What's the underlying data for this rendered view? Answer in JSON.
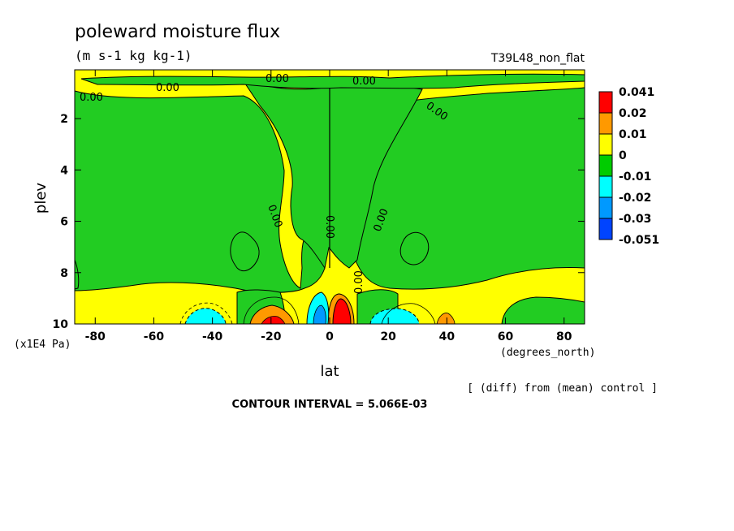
{
  "chart_data": {
    "type": "heatmap",
    "title": "poleward moisture flux",
    "units": "(m s-1 kg kg-1)",
    "run_label": "T39L48_non_flat",
    "xlabel": "lat",
    "ylabel": "plev",
    "x_unit_label": "(degrees_north)",
    "y_unit_label": "(x1E4 Pa)",
    "x_ticks": [
      -80,
      -60,
      -40,
      -20,
      0,
      20,
      40,
      60,
      80
    ],
    "y_ticks": [
      2,
      4,
      6,
      8,
      10
    ],
    "xlim": [
      -87,
      87
    ],
    "ylim": [
      10,
      0.1
    ],
    "diff_note": "[ (diff) from (mean) control ]",
    "contour_interval": "CONTOUR INTERVAL = 5.066E-03",
    "contour_labels": [
      "0.00",
      "0.00",
      "0.00",
      "0.00",
      "0.00",
      "0.00",
      "0.00",
      "0.00",
      "0.00"
    ],
    "legend": {
      "placement": "right",
      "labels": [
        "0.041",
        "0.02",
        "0.01",
        "0",
        "-0.01",
        "-0.02",
        "-0.03",
        "-0.051"
      ],
      "colors": [
        "#ff0000",
        "#ff9900",
        "#ffff00",
        "#00cc00",
        "#00ffff",
        "#0099ff",
        "#0044ff"
      ]
    },
    "colors": {
      "yellow": "#ffff00",
      "green": "#22cc22",
      "orange": "#ff9900",
      "red": "#ff0000",
      "cyan": "#00ffff",
      "blue": "#0099ff"
    }
  }
}
